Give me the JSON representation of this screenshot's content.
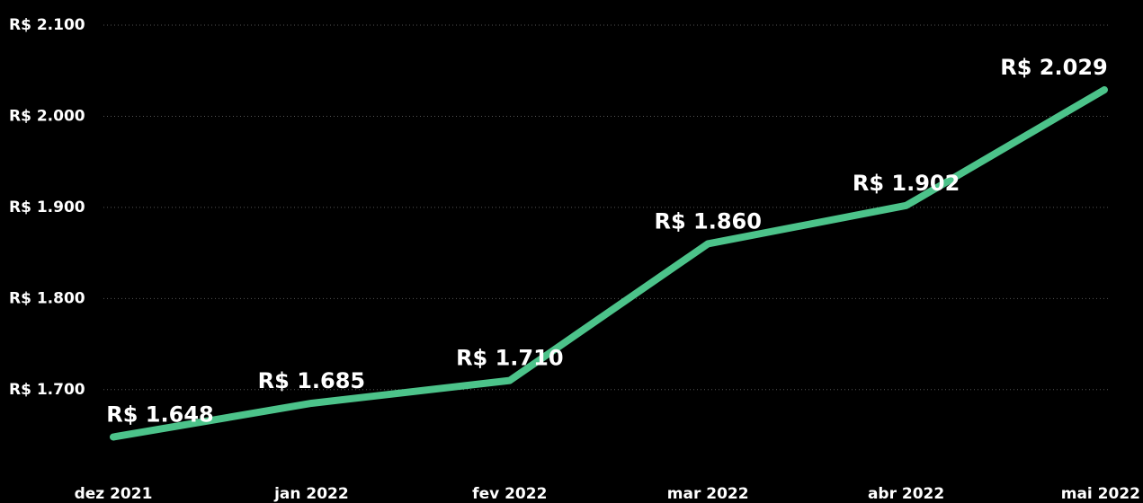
{
  "chart_data": {
    "type": "line",
    "categories": [
      "dez 2021",
      "jan 2022",
      "fev 2022",
      "mar 2022",
      "abr 2022",
      "mai 2022"
    ],
    "series": [
      {
        "name": "Valor",
        "color": "#4cc38a",
        "values": [
          1648,
          1685,
          1710,
          1860,
          1902,
          2029
        ],
        "value_labels": [
          "R$ 1.648",
          "R$ 1.685",
          "R$ 1.710",
          "R$ 1.860",
          "R$ 1.902",
          "R$ 2.029"
        ]
      }
    ],
    "ylim": [
      1615,
      2100
    ],
    "yticks": [
      {
        "value": 1700,
        "label": "R$ 1.700"
      },
      {
        "value": 1800,
        "label": "R$ 1.800"
      },
      {
        "value": 1900,
        "label": "R$ 1.900"
      },
      {
        "value": 2000,
        "label": "R$ 2.000"
      },
      {
        "value": 2100,
        "label": "R$ 2.100"
      }
    ],
    "grid": true
  }
}
